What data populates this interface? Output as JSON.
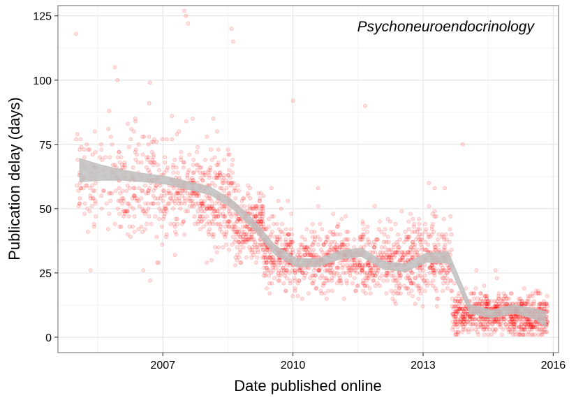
{
  "chart_data": {
    "type": "scatter",
    "title": "Psychoneuroendocrinology",
    "xlabel": "Date published online",
    "ylabel": "Publication delay (days)",
    "x_ticks": [
      "2007",
      "2010",
      "2013",
      "2016"
    ],
    "y_ticks": [
      "0",
      "25",
      "50",
      "75",
      "100",
      "125"
    ],
    "xlim": [
      "2004-08-01",
      "2016-02-15"
    ],
    "ylim": [
      -6,
      129
    ],
    "grid": true,
    "point_color": "#ff0000",
    "point_alpha": 0.12,
    "smooth_band_color": "#bfbfbf",
    "smooth_line": {
      "x": [
        "2005-02-01",
        "2005-08-01",
        "2006-02-01",
        "2006-08-01",
        "2007-02-01",
        "2007-08-01",
        "2008-02-01",
        "2008-08-01",
        "2009-02-01",
        "2009-08-01",
        "2010-02-01",
        "2010-08-01",
        "2011-02-01",
        "2011-08-01",
        "2012-02-01",
        "2012-08-01",
        "2013-02-01",
        "2013-08-01",
        "2014-02-01",
        "2014-08-01",
        "2015-02-01",
        "2015-08-01",
        "2015-11-01"
      ],
      "y": [
        65,
        64,
        63,
        62,
        61,
        59,
        57,
        52,
        44,
        34,
        29,
        29,
        32,
        33,
        28,
        27,
        31,
        31,
        11,
        9,
        11,
        9,
        7
      ],
      "band": [
        4.5,
        3,
        2,
        1.6,
        1.5,
        1.5,
        1.5,
        1.6,
        1.8,
        1.8,
        1.6,
        1.5,
        1.6,
        1.6,
        1.5,
        1.5,
        1.8,
        2.2,
        1.8,
        1.5,
        1.6,
        2,
        3
      ]
    },
    "notable_points": {
      "x": [
        "2005-01-01",
        "2007-07-01",
        "2007-07-15",
        "2007-08-01",
        "2008-08-01",
        "2008-08-15",
        "2006-09-15",
        "2010-01-01",
        "2011-09-01",
        "2013-12-01"
      ],
      "y": [
        118,
        127,
        125,
        122,
        120,
        115,
        99,
        92,
        90,
        75
      ]
    },
    "density": [
      {
        "x": [
          "2005-01-01",
          "2006-01-01"
        ],
        "center": 62,
        "spread": 9,
        "n": 110
      },
      {
        "x": [
          "2006-01-01",
          "2007-01-01"
        ],
        "center": 58,
        "spread": 10,
        "n": 170
      },
      {
        "x": [
          "2007-01-01",
          "2008-01-01"
        ],
        "center": 56,
        "spread": 9,
        "n": 210
      },
      {
        "x": [
          "2008-01-01",
          "2008-09-01"
        ],
        "center": 52,
        "spread": 9,
        "n": 180
      },
      {
        "x": [
          "2008-09-01",
          "2009-05-01"
        ],
        "center": 43,
        "spread": 6,
        "n": 220
      },
      {
        "x": [
          "2009-05-01",
          "2010-01-01"
        ],
        "center": 32,
        "spread": 6,
        "n": 210
      },
      {
        "x": [
          "2010-01-01",
          "2011-06-01"
        ],
        "center": 30,
        "spread": 6,
        "n": 330
      },
      {
        "x": [
          "2011-06-01",
          "2012-09-01"
        ],
        "center": 29,
        "spread": 6,
        "n": 300
      },
      {
        "x": [
          "2012-09-01",
          "2013-09-01"
        ],
        "center": 30,
        "spread": 7,
        "n": 250
      },
      {
        "x": [
          "2013-09-01",
          "2015-01-01"
        ],
        "center": 9,
        "spread": 4,
        "n": 420
      },
      {
        "x": [
          "2015-01-01",
          "2015-11-15"
        ],
        "center": 8,
        "spread": 4,
        "n": 330
      }
    ]
  }
}
